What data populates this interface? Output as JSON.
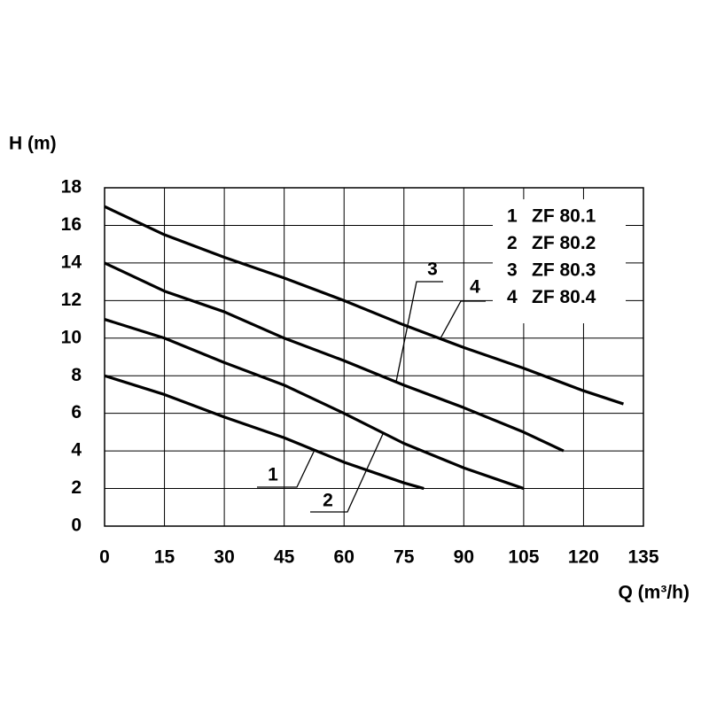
{
  "chart_data": {
    "type": "line",
    "y_label": "H (m)",
    "x_label": "Q (m³/h)",
    "xlim": [
      0,
      135
    ],
    "xticks": [
      0,
      15,
      30,
      45,
      60,
      75,
      90,
      105,
      120,
      135
    ],
    "ylim": [
      0,
      18
    ],
    "yticks": [
      0,
      2,
      4,
      6,
      8,
      10,
      12,
      14,
      16,
      18
    ],
    "grid": true,
    "legend": "top-right",
    "series": [
      {
        "label": "1",
        "name": "ZF 80.1",
        "color": "#000000",
        "x": [
          0,
          15,
          30,
          45,
          60,
          75,
          80
        ],
        "values": [
          8,
          7,
          5.8,
          4.7,
          3.4,
          2.3,
          2
        ]
      },
      {
        "label": "2",
        "name": "ZF 80.2",
        "color": "#000000",
        "x": [
          0,
          15,
          30,
          45,
          60,
          75,
          90,
          105
        ],
        "values": [
          11,
          10,
          8.7,
          7.5,
          6,
          4.4,
          3.1,
          2
        ]
      },
      {
        "label": "3",
        "name": "ZF 80.3",
        "color": "#000000",
        "x": [
          0,
          15,
          30,
          45,
          60,
          75,
          90,
          105,
          115
        ],
        "values": [
          14,
          12.5,
          11.4,
          10,
          8.8,
          7.5,
          6.3,
          5,
          4
        ]
      },
      {
        "label": "4",
        "name": "ZF 80.4",
        "color": "#000000",
        "x": [
          0,
          15,
          30,
          45,
          60,
          75,
          90,
          105,
          120,
          130
        ],
        "values": [
          17,
          15.5,
          14.3,
          13.2,
          12,
          10.7,
          9.5,
          8.4,
          7.2,
          6.5
        ]
      }
    ]
  }
}
